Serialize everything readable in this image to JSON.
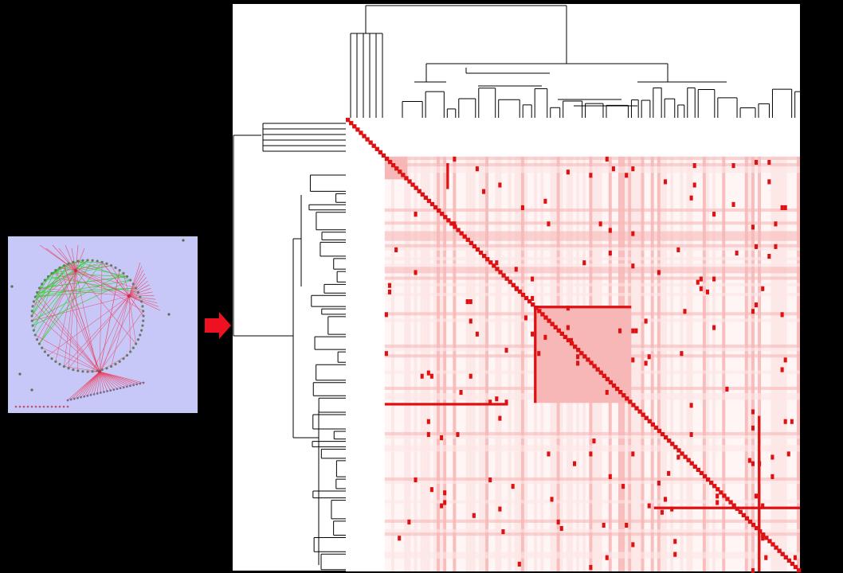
{
  "figure": {
    "description_labels": [],
    "colors": {
      "background": "#000000",
      "panel_background": "#ffffff",
      "network_background": "#c8c8f8",
      "edge_red": "#e84a6a",
      "edge_green": "#30d030",
      "heatmap_strong": "#dd1111",
      "heatmap_medium": "#f7b7b7",
      "heatmap_light": "#fde6e6",
      "arrow": "#ee1122",
      "dendrogram_line": "#000000"
    },
    "network_panel": {
      "type": "network-graph"
    },
    "arrow": {
      "direction": "right"
    },
    "clustered_heatmap": {
      "type": "heatmap-with-dendrograms"
    }
  }
}
